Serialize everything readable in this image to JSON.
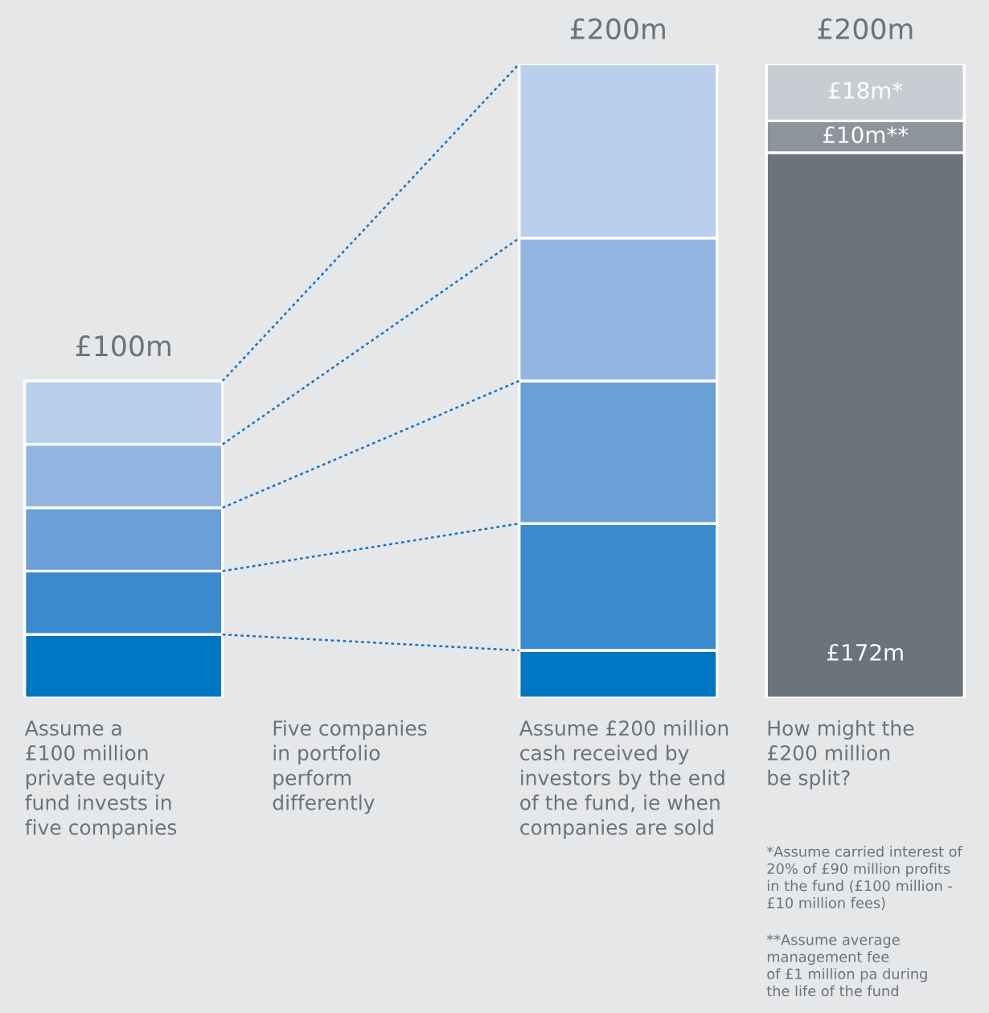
{
  "chart_data": {
    "type": "bar",
    "stacked": true,
    "categories": [
      "Assume a\n£100 million\nprivate equity\nfund invests in\nfive companies",
      "Five companies\nin portfolio\nperform\ndifferently",
      "Assume £200 million\ncash received by\ninvestors by the end\nof the fund, ie when\ncompanies are sold",
      "How might the\n£200 million\nbe split?"
    ],
    "series": [
      {
        "values": [
          20,
          null,
          15,
          172
        ],
        "colors": [
          "#0077c0",
          "#0077c0",
          "#0077c0",
          "#6b737b"
        ],
        "value_labels": [
          null,
          null,
          null,
          "£172m"
        ]
      },
      {
        "values": [
          20,
          null,
          40,
          10
        ],
        "colors": [
          "#3a8acd",
          "#3a8acd",
          "#3a8acd",
          "#8d949b"
        ],
        "value_labels": [
          null,
          null,
          null,
          "£10m**"
        ]
      },
      {
        "values": [
          20,
          null,
          45,
          18
        ],
        "colors": [
          "#6a9fd8",
          "#6a9fd8",
          "#6a9fd8",
          "#c9cdd3"
        ],
        "value_labels": [
          null,
          null,
          null,
          "£18m*"
        ]
      },
      {
        "values": [
          20,
          null,
          45,
          null
        ],
        "colors": [
          "#93b5e1",
          "#93b5e1",
          "#93b5e1",
          "#93b5e1"
        ]
      },
      {
        "values": [
          20,
          null,
          55,
          null
        ],
        "colors": [
          "#b9cfec",
          "#b9cfec",
          "#b9cfec",
          "#b9cfec"
        ]
      }
    ],
    "totals": [
      "£100m",
      null,
      "£200m",
      "£200m"
    ],
    "annotations": [
      "*Assume carried interest of\n20% of £90 million profits\nin the fund (£100 million -\n£10 million fees)",
      "**Assume average\nmanagement fee\nof £1 million pa during\nthe life of the fund"
    ]
  }
}
